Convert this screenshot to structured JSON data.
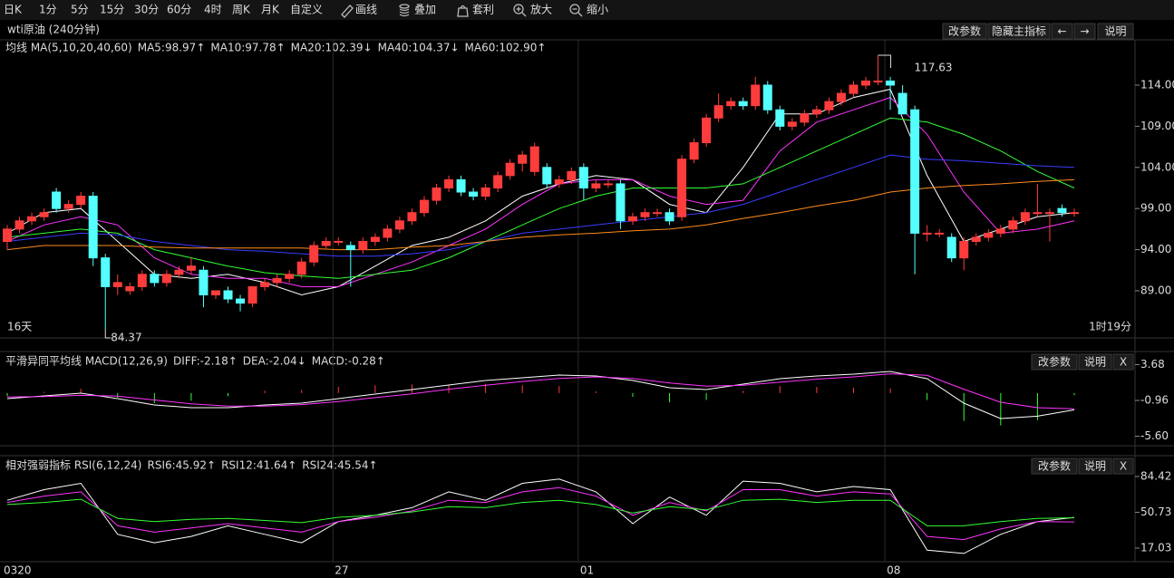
{
  "toolbar": {
    "items": [
      "日K",
      "1分",
      "5分",
      "15分",
      "30分",
      "60分",
      "4时",
      "周K",
      "月K",
      "自定义",
      "画线",
      "叠加",
      "套利",
      "放大",
      "缩小"
    ],
    "active_index": 6,
    "active_color": "#4a8cff"
  },
  "main": {
    "title": "wti原油 (240分钟)",
    "buttons": [
      "改参数",
      "隐藏主指标",
      "←",
      "→",
      "说明"
    ],
    "legend": [
      {
        "text": "均线 MA(5,10,20,40,60)",
        "color": "#dcdcdc"
      },
      {
        "text": "MA5:98.97↑",
        "color": "#ffffff"
      },
      {
        "text": "MA10:97.78↑",
        "color": "#ff33ff"
      },
      {
        "text": "MA20:102.39↓",
        "color": "#33ff33"
      },
      {
        "text": "MA40:104.37↓",
        "color": "#3b3bff"
      },
      {
        "text": "MA60:102.90↑",
        "color": "#ff8c1a"
      }
    ],
    "left_note": "16天",
    "right_note": "1时19分",
    "note_color": "#ffcc33",
    "ylim": [
      83.27,
      117.3
    ],
    "yticks": [
      {
        "value": 89,
        "label": "89.00"
      },
      {
        "value": 94,
        "label": "94.00"
      },
      {
        "value": 99,
        "label": "99.00"
      },
      {
        "value": 104,
        "label": "104.00"
      },
      {
        "value": 109,
        "label": "109.00"
      },
      {
        "value": 114,
        "label": "114.00"
      }
    ],
    "up_color": "#ff3c3c",
    "down_color": "#54ffff",
    "candles": [
      [
        95,
        97,
        94,
        96.5
      ],
      [
        96.5,
        98,
        96,
        97.5
      ],
      [
        97.5,
        98.5,
        97,
        98
      ],
      [
        98,
        99,
        97.5,
        98.5
      ],
      [
        101,
        101.5,
        98.5,
        99
      ],
      [
        99,
        100,
        98.5,
        99.5
      ],
      [
        99.5,
        101,
        99,
        100.5
      ],
      [
        100.5,
        101,
        92,
        93
      ],
      [
        93,
        93.5,
        84.37,
        89.5
      ],
      [
        89.5,
        91,
        88.5,
        90
      ],
      [
        89,
        90,
        88.5,
        89.5
      ],
      [
        89.5,
        91.5,
        89,
        91
      ],
      [
        91,
        91.5,
        89.5,
        90
      ],
      [
        90,
        91.5,
        89.5,
        91
      ],
      [
        91,
        92,
        90.5,
        91.5
      ],
      [
        91.5,
        93,
        91,
        92
      ],
      [
        91.5,
        92,
        87,
        88.5
      ],
      [
        88.5,
        89,
        88,
        89
      ],
      [
        89,
        89.5,
        87.5,
        88
      ],
      [
        88,
        88.5,
        86.5,
        87.5
      ],
      [
        87.5,
        89.5,
        87,
        89.5
      ],
      [
        89.5,
        90.5,
        89,
        90
      ],
      [
        90,
        91,
        89.5,
        90.5
      ],
      [
        90.5,
        91.5,
        90,
        91
      ],
      [
        91,
        93,
        90.5,
        92.5
      ],
      [
        92.5,
        95,
        92,
        94.5
      ],
      [
        94.5,
        95.5,
        94,
        95
      ],
      [
        95,
        95.5,
        94.5,
        95
      ],
      [
        94.5,
        95,
        89.5,
        94
      ],
      [
        94,
        95.5,
        93.5,
        95
      ],
      [
        95,
        96,
        94.5,
        95.5
      ],
      [
        95.5,
        97,
        95,
        96.5
      ],
      [
        96.5,
        98,
        96,
        97.5
      ],
      [
        97.5,
        99,
        97,
        98.5
      ],
      [
        98.5,
        100.5,
        98,
        100
      ],
      [
        100,
        102,
        99.5,
        101.5
      ],
      [
        101.5,
        103,
        101,
        102.5
      ],
      [
        102.5,
        103,
        100.5,
        101
      ],
      [
        101,
        101.5,
        100,
        100.5
      ],
      [
        100.5,
        102,
        100,
        101.5
      ],
      [
        101.5,
        103.5,
        101,
        103
      ],
      [
        103,
        105,
        102.5,
        104.5
      ],
      [
        104.5,
        106,
        103.5,
        105.5
      ],
      [
        103.5,
        107,
        103,
        106.5
      ],
      [
        104,
        104.5,
        101.5,
        102
      ],
      [
        102,
        103,
        101.5,
        102.5
      ],
      [
        102.5,
        104,
        102,
        103.5
      ],
      [
        104,
        104.5,
        100,
        101.5
      ],
      [
        101.5,
        102.5,
        101,
        102
      ],
      [
        102,
        102.5,
        101.5,
        102
      ],
      [
        102,
        102.5,
        96.5,
        97.5
      ],
      [
        97.5,
        98.5,
        97,
        98
      ],
      [
        98,
        99,
        97.5,
        98.5
      ],
      [
        98.5,
        99,
        98,
        98.5
      ],
      [
        98.5,
        99,
        97,
        97.5
      ],
      [
        98,
        105.5,
        97.5,
        105
      ],
      [
        105,
        107.5,
        104.5,
        107
      ],
      [
        107,
        110.5,
        106.5,
        110
      ],
      [
        110,
        113,
        109.5,
        111.5
      ],
      [
        111.5,
        112.5,
        111,
        112
      ],
      [
        112,
        112.5,
        111,
        111.5
      ],
      [
        111.5,
        115,
        111,
        114
      ],
      [
        114,
        114.5,
        110.5,
        111
      ],
      [
        111,
        111.5,
        108.5,
        109
      ],
      [
        109,
        110,
        108.5,
        109.5
      ],
      [
        109.5,
        111,
        109,
        110.5
      ],
      [
        110.5,
        111.5,
        110,
        111
      ],
      [
        111,
        112.5,
        110.5,
        112
      ],
      [
        112,
        113.5,
        111.5,
        113
      ],
      [
        113,
        114.5,
        112.5,
        114
      ],
      [
        114,
        115,
        113.5,
        114.5
      ],
      [
        114.5,
        117.63,
        114,
        114.5
      ],
      [
        114.5,
        115,
        111,
        114
      ],
      [
        113,
        114,
        110.5,
        110.5
      ],
      [
        111,
        111.5,
        91,
        96
      ],
      [
        96,
        97,
        95,
        96
      ],
      [
        96,
        96.5,
        95.5,
        96
      ],
      [
        95.5,
        96,
        92.5,
        93
      ],
      [
        93,
        95.5,
        91.5,
        95
      ],
      [
        95,
        96,
        94.5,
        95.5
      ],
      [
        95.5,
        96.5,
        95,
        96
      ],
      [
        96,
        97,
        95.5,
        96.5
      ],
      [
        96.5,
        98,
        96,
        97.5
      ],
      [
        97.5,
        99,
        97,
        98.5
      ],
      [
        98.5,
        102,
        98,
        98.5
      ],
      [
        98.5,
        99,
        95,
        98.5
      ],
      [
        99,
        99.5,
        98,
        98.5
      ],
      [
        98.5,
        99,
        98,
        98.5
      ]
    ],
    "lines": [
      {
        "color": "#ffffff",
        "values": [
          96,
          98.5,
          99,
          95,
          91,
          90.5,
          91,
          90,
          88.5,
          89.5,
          92,
          94.5,
          95.5,
          97.5,
          100.5,
          102,
          103,
          102.5,
          99.5,
          98.5,
          104,
          110.5,
          110.5,
          112.5,
          113.5,
          103,
          95,
          96.5,
          98,
          98.5
        ]
      },
      {
        "color": "#ff33ff",
        "values": [
          95,
          97,
          98,
          97,
          93,
          91,
          90.5,
          90.5,
          89.5,
          89.5,
          91,
          92.5,
          94.5,
          96.5,
          99.5,
          102,
          102.5,
          102.5,
          100.5,
          99.5,
          100,
          106,
          109.5,
          111,
          112.5,
          108,
          101,
          96,
          96.5,
          97.5
        ]
      },
      {
        "color": "#33ff33",
        "values": [
          95.5,
          96,
          96.5,
          96,
          94,
          93,
          92,
          91.2,
          90.8,
          90.5,
          91,
          91.5,
          93,
          95,
          97,
          99,
          100.5,
          101.5,
          101.5,
          101.5,
          102,
          104,
          106,
          108,
          110,
          109.5,
          108,
          106,
          103.5,
          101.5
        ]
      },
      {
        "color": "#3b3bff",
        "values": [
          95,
          95.5,
          96,
          95.8,
          95,
          94.5,
          94,
          93.8,
          93.5,
          93.2,
          93.2,
          93.5,
          94,
          95,
          96,
          96.5,
          97,
          97.5,
          98,
          98.5,
          99.5,
          101,
          102.5,
          104,
          105.5,
          105,
          104.8,
          104.5,
          104.2,
          104
        ]
      },
      {
        "color": "#ff8c1a",
        "values": [
          94,
          94.5,
          94.5,
          94.5,
          94.3,
          94.2,
          94.2,
          94.2,
          94.2,
          94,
          94,
          94.3,
          94.5,
          95,
          95.5,
          95.8,
          96,
          96.3,
          96.5,
          97,
          97.8,
          98.5,
          99.3,
          100,
          101,
          101.5,
          101.8,
          102,
          102.3,
          102.5
        ]
      }
    ],
    "dates": [
      {
        "label": "0320",
        "index": 0
      },
      {
        "label": "27",
        "index": 27
      },
      {
        "label": "01",
        "index": 47
      },
      {
        "label": "08",
        "index": 72
      }
    ]
  },
  "macd": {
    "legend": [
      {
        "text": "平滑异同平均线 MACD(12,26,9)",
        "color": "#dcdcdc"
      },
      {
        "text": "DIFF:-2.18↑",
        "color": "#ffffff"
      },
      {
        "text": "DEA:-2.04↓",
        "color": "#ff33ff"
      },
      {
        "text": "MACD:-0.28↑",
        "color": "#33ff33"
      }
    ],
    "buttons": [
      "改参数",
      "说明",
      "X"
    ],
    "ylim": [
      -6.6,
      5.15
    ],
    "yticks": [
      3.68,
      -0.96,
      {
        "value": -5.6,
        "label": "-5.60"
      }
    ],
    "lines": [
      {
        "color": "#ffffff",
        "values": [
          -0.72,
          -0.37,
          -0.02,
          -0.72,
          -1.55,
          -1.9,
          -1.9,
          -1.55,
          -1.31,
          -0.72,
          -0.14,
          0.45,
          1.04,
          1.63,
          1.98,
          2.33,
          2.21,
          1.63,
          0.69,
          0.45,
          1.16,
          1.86,
          2.21,
          2.45,
          2.8,
          1.86,
          -1.31,
          -3.31,
          -3.0,
          -2.18
        ]
      },
      {
        "color": "#ff33ff",
        "values": [
          -0.5,
          -0.45,
          -0.3,
          -0.4,
          -0.9,
          -1.4,
          -1.7,
          -1.7,
          -1.5,
          -1.1,
          -0.6,
          -0.1,
          0.5,
          1.0,
          1.5,
          1.9,
          2.1,
          1.9,
          1.3,
          0.9,
          1.0,
          1.4,
          1.8,
          2.1,
          2.5,
          2.3,
          0.5,
          -1.2,
          -1.9,
          -2.04
        ]
      }
    ],
    "pos_color": "#ff3c3c",
    "neg_color": "#33ff33",
    "histogram": [
      -0.4,
      0.15,
      0.55,
      -0.6,
      -1.3,
      -1.0,
      -0.4,
      0.3,
      0.4,
      0.8,
      1.0,
      1.1,
      1.1,
      1.2,
      1.0,
      0.9,
      0.2,
      -0.5,
      -1.2,
      -0.9,
      0.3,
      0.9,
      0.8,
      0.7,
      0.6,
      -0.9,
      -3.6,
      -4.2,
      -3.5,
      -0.28
    ]
  },
  "rsi": {
    "legend": [
      {
        "text": "相对强弱指标 RSI(6,12,24)",
        "color": "#dcdcdc"
      },
      {
        "text": "RSI6:45.92↑",
        "color": "#ffffff"
      },
      {
        "text": "RSI12:41.64↑",
        "color": "#ff33ff"
      },
      {
        "text": "RSI24:45.54↑",
        "color": "#33ff33"
      }
    ],
    "buttons": [
      "改参数",
      "说明",
      "X"
    ],
    "ylim": [
      4.2,
      102.3
    ],
    "yticks": [
      84.42,
      50.73,
      17.03
    ],
    "lines": [
      {
        "color": "#ffffff",
        "values": [
          62,
          72,
          78,
          30,
          22,
          28,
          38,
          30,
          22,
          42,
          48,
          55,
          70,
          62,
          78,
          82,
          70,
          40,
          65,
          48,
          80,
          78,
          70,
          75,
          72,
          15,
          12,
          30,
          42,
          45.92
        ]
      },
      {
        "color": "#ff33ff",
        "values": [
          60,
          66,
          70,
          38,
          32,
          36,
          40,
          36,
          32,
          42,
          46,
          52,
          62,
          60,
          70,
          74,
          66,
          48,
          60,
          52,
          72,
          72,
          66,
          70,
          68,
          28,
          25,
          35,
          42,
          41.64
        ]
      },
      {
        "color": "#33ff33",
        "values": [
          58,
          60,
          63,
          45,
          42,
          44,
          45,
          43,
          41,
          46,
          48,
          51,
          56,
          55,
          60,
          62,
          58,
          50,
          56,
          53,
          62,
          63,
          60,
          62,
          62,
          38,
          38,
          42,
          45,
          45.54
        ]
      }
    ]
  }
}
